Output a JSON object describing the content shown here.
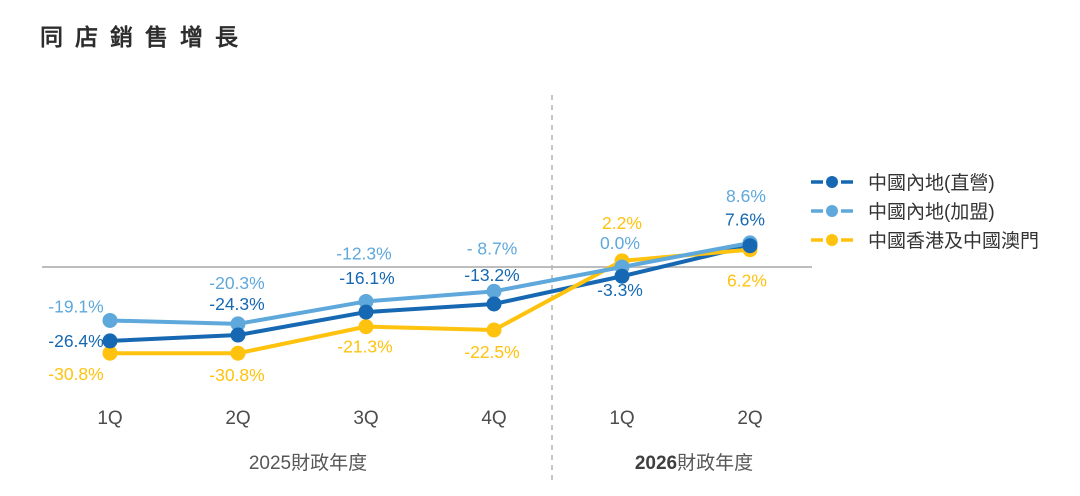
{
  "chart_data": {
    "type": "line",
    "title": "同店銷售增長",
    "categories": [
      "1Q",
      "2Q",
      "3Q",
      "4Q",
      "1Q",
      "2Q"
    ],
    "category_groups": [
      {
        "year": "2025",
        "suffix": "財政年度",
        "bold": false,
        "span": [
          0,
          3
        ]
      },
      {
        "year": "2026",
        "suffix": "財政年度",
        "bold": true,
        "span": [
          4,
          5
        ]
      }
    ],
    "series": [
      {
        "name": "中國內地(直營)",
        "color": "#1668B2",
        "values": [
          -26.4,
          -24.3,
          -16.1,
          -13.2,
          -3.3,
          7.6
        ],
        "labels": [
          "-26.4%",
          "-24.3%",
          "-16.1%",
          "-13.2%",
          "-3.3%",
          "7.6%"
        ],
        "label_offsets": [
          [
            -34,
            0
          ],
          [
            -1,
            -31
          ],
          [
            1,
            -34
          ],
          [
            -2,
            -29
          ],
          [
            -2,
            14
          ],
          [
            -5,
            -26
          ]
        ]
      },
      {
        "name": "中國內地(加盟)",
        "color": "#5FA8DC",
        "values": [
          -19.1,
          -20.3,
          -12.3,
          -8.7,
          0.0,
          8.6
        ],
        "labels": [
          "-19.1%",
          "-20.3%",
          "-12.3%",
          "- 8.7%",
          "0.0%",
          "8.6%"
        ],
        "label_offsets": [
          [
            -34,
            -14
          ],
          [
            -1,
            -41
          ],
          [
            -2,
            -48
          ],
          [
            -2,
            -43
          ],
          [
            -2,
            -24
          ],
          [
            -4,
            -47
          ]
        ]
      },
      {
        "name": "中國香港及中國澳門",
        "color": "#FFC20E",
        "values": [
          -30.8,
          -30.8,
          -21.3,
          -22.5,
          2.2,
          6.2
        ],
        "labels": [
          "-30.8%",
          "-30.8%",
          "-21.3%",
          "-22.5%",
          "2.2%",
          "6.2%"
        ],
        "label_offsets": [
          [
            -34,
            21
          ],
          [
            -1,
            22
          ],
          [
            -1,
            20
          ],
          [
            -2,
            22
          ],
          [
            0,
            -38
          ],
          [
            -3,
            31
          ]
        ]
      }
    ],
    "baseline": 0,
    "ylim": [
      -35,
      12
    ],
    "grid": false,
    "legend_position": "right",
    "divider_after_index": 3,
    "colors": {
      "baseline_line": "#bdbdbd",
      "divider_line": "#b3b3b3",
      "tick_text": "#4c4c4c"
    }
  }
}
